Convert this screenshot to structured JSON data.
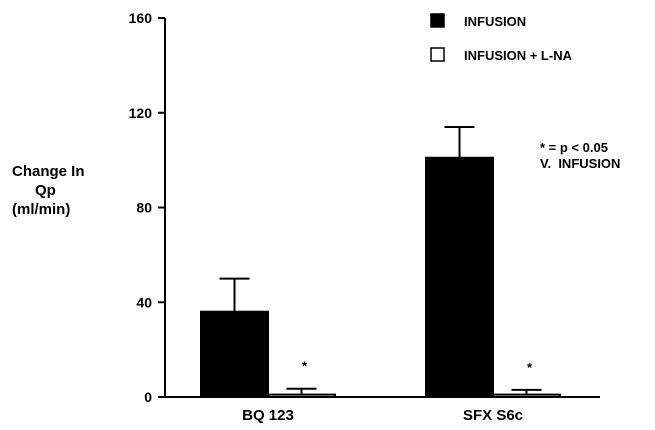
{
  "chart_data": {
    "type": "bar",
    "title": "",
    "ylabel": [
      "Change In",
      "Qp",
      "(ml/min)"
    ],
    "ylim": [
      0,
      160
    ],
    "yticks": [
      0,
      40,
      80,
      120,
      160
    ],
    "categories": [
      "BQ 123",
      "SFX S6c"
    ],
    "series": [
      {
        "name": "INFUSION",
        "values": [
          36,
          101
        ],
        "errors": [
          14,
          13
        ],
        "fill": "#000000"
      },
      {
        "name": "INFUSION + L-NA",
        "values": [
          1,
          1
        ],
        "errors": [
          2.5,
          2
        ],
        "fill": "#ffffff"
      }
    ],
    "significance_markers": [
      "*",
      "*"
    ],
    "annotation": [
      "* = p < 0.05",
      "V.  INFUSION"
    ],
    "legend_position": "top-right"
  }
}
